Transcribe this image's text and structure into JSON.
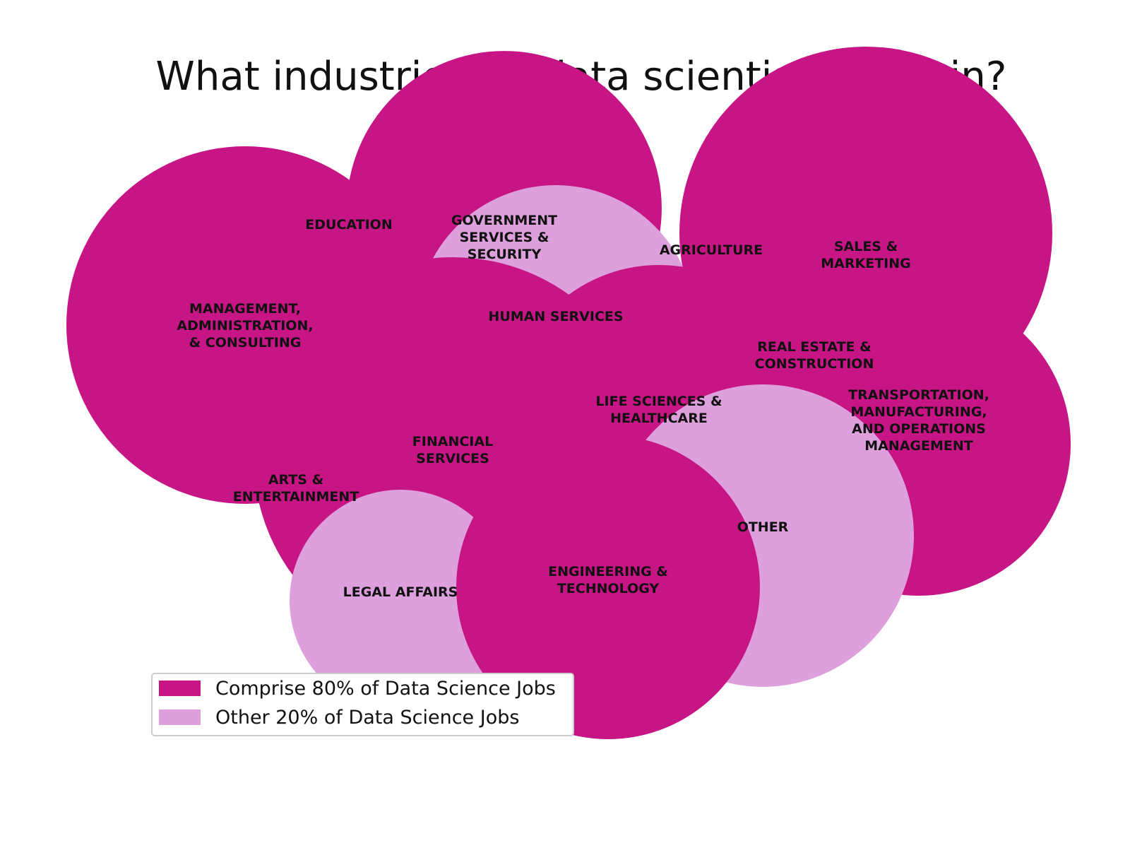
{
  "chart_data": {
    "type": "bubble",
    "title": "What industries do data scientists work in?",
    "colors": {
      "major": "#c71585",
      "minor": "#dda0dd"
    },
    "bubbles": [
      {
        "label": "GOVERNMENT SERVICES & SECURITY",
        "lines": [
          "GOVERNMENT",
          "SERVICES &",
          "SECURITY"
        ],
        "group": "major",
        "size": 49690
      },
      {
        "label": "EDUCATION",
        "lines": [
          "EDUCATION"
        ],
        "group": "minor",
        "size": 3600
      },
      {
        "label": "SALES & MARKETING",
        "lines": [
          "SALES &",
          "MARKETING"
        ],
        "group": "major",
        "size": 69700
      },
      {
        "label": "AGRICULTURE",
        "lines": [
          "AGRICULTURE"
        ],
        "group": "minor",
        "size": 784
      },
      {
        "label": "MANAGEMENT, ADMINISTRATION, & CONSULTING",
        "lines": [
          "MANAGEMENT,",
          "ADMINISTRATION,",
          "& CONSULTING"
        ],
        "group": "major",
        "size": 64009
      },
      {
        "label": "HUMAN SERVICES",
        "lines": [
          "HUMAN SERVICES"
        ],
        "group": "minor",
        "size": 39204
      },
      {
        "label": "REAL ESTATE & CONSTRUCTION",
        "lines": [
          "REAL ESTATE &",
          "CONSTRUCTION"
        ],
        "group": "minor",
        "size": 64
      },
      {
        "label": "LIFE SCIENCES & HEALTHCARE",
        "lines": [
          "LIFE SCIENCES &",
          "HEALTHCARE"
        ],
        "group": "major",
        "size": 46225
      },
      {
        "label": "TRANSPORTATION, MANUFACTURING, AND OPERATIONS MANAGEMENT",
        "lines": [
          "TRANSPORTATION,",
          "MANUFACTURING,",
          "AND OPERATIONS",
          "MANAGEMENT"
        ],
        "group": "major",
        "size": 46225
      },
      {
        "label": "FINANCIAL SERVICES",
        "lines": [
          "FINANCIAL",
          "SERVICES"
        ],
        "group": "major",
        "size": 79524
      },
      {
        "label": "ARTS & ENTERTAINMENT",
        "lines": [
          "ARTS &",
          "ENTERTAINMENT"
        ],
        "group": "minor",
        "size": 100
      },
      {
        "label": "OTHER",
        "lines": [
          "OTHER"
        ],
        "group": "minor",
        "size": 45796
      },
      {
        "label": "LEGAL AFFAIRS",
        "lines": [
          "LEGAL AFFAIRS"
        ],
        "group": "minor",
        "size": 24649
      },
      {
        "label": "ENGINEERING & TECHNOLOGY",
        "lines": [
          "ENGINEERING &",
          "TECHNOLOGY"
        ],
        "group": "major",
        "size": 46225
      }
    ],
    "legend": {
      "placement": "bottom-left",
      "entries": [
        {
          "group": "major",
          "label": "Comprise 80% of Data Science Jobs"
        },
        {
          "group": "minor",
          "label": "Other 20% of Data Science Jobs"
        }
      ]
    }
  }
}
